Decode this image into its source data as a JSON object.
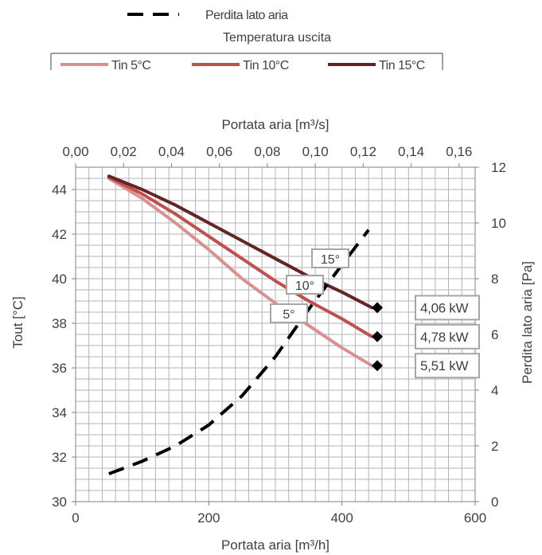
{
  "chart_data": {
    "type": "line",
    "legend": {
      "position": "top",
      "dashed_entry": "Perdita lato aria",
      "group_title": "Temperatura uscita"
    },
    "x_bottom": {
      "label": "Portata aria [m³/h]",
      "range": [
        0,
        600
      ],
      "ticks": [
        0,
        200,
        400,
        600
      ]
    },
    "x_top": {
      "label": "Portata aria [m³/s]",
      "range": [
        0,
        0.1667
      ],
      "tick_values": [
        0,
        0.02,
        0.04,
        0.06,
        0.08,
        0.1,
        0.12,
        0.14,
        0.16
      ],
      "tick_labels": [
        "0,00",
        "0,02",
        "0,04",
        "0,06",
        "0,08",
        "0,10",
        "0,12",
        "0,14",
        "0,16"
      ]
    },
    "y_left": {
      "label": "Tout [°C]",
      "range": [
        30,
        45
      ],
      "ticks": [
        30,
        32,
        34,
        36,
        38,
        40,
        42,
        44
      ]
    },
    "y_right": {
      "label": "Perdita lato aria [Pa]",
      "range": [
        0,
        12
      ],
      "ticks": [
        0,
        2,
        4,
        6,
        8,
        10,
        12
      ]
    },
    "grid": true,
    "series": [
      {
        "name": "Tin 5°C",
        "axis": "left",
        "color": "#d9908f",
        "width": 4,
        "x": [
          50,
          100,
          150,
          200,
          250,
          300,
          350,
          400,
          445
        ],
        "y": [
          44.5,
          43.6,
          42.5,
          41.3,
          40.0,
          38.9,
          37.9,
          36.9,
          36.1
        ],
        "end_marker": "diamond",
        "end_label": "5,51 kW",
        "curve_label": "5°"
      },
      {
        "name": "Tin 10°C",
        "axis": "left",
        "color": "#c0504d",
        "width": 4,
        "x": [
          50,
          100,
          150,
          200,
          250,
          300,
          350,
          400,
          445
        ],
        "y": [
          44.55,
          43.8,
          42.9,
          41.9,
          40.9,
          39.9,
          39.0,
          38.2,
          37.4
        ],
        "end_marker": "diamond",
        "end_label": "4,78 kW",
        "curve_label": "10°"
      },
      {
        "name": "Tin 15°C",
        "axis": "left",
        "color": "#632523",
        "width": 4,
        "x": [
          50,
          100,
          150,
          200,
          250,
          300,
          350,
          400,
          445
        ],
        "y": [
          44.6,
          44.0,
          43.3,
          42.5,
          41.7,
          40.9,
          40.1,
          39.4,
          38.7
        ],
        "end_marker": "diamond",
        "end_label": "4,06 kW",
        "curve_label": "15°"
      },
      {
        "name": "Perdita lato aria",
        "axis": "right",
        "color": "#000000",
        "width": 4,
        "dashed": true,
        "x": [
          50,
          100,
          150,
          200,
          250,
          300,
          350,
          400,
          440
        ],
        "y": [
          1.0,
          1.45,
          2.0,
          2.75,
          3.8,
          5.2,
          6.9,
          8.5,
          9.75
        ]
      }
    ]
  }
}
